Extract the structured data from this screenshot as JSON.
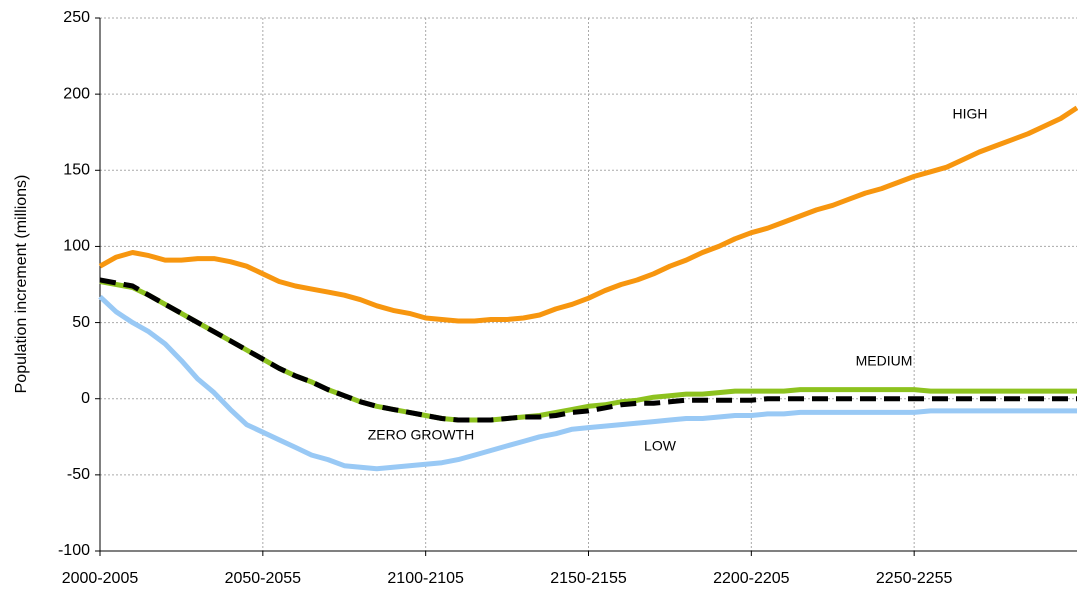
{
  "chart_data": {
    "type": "line",
    "y_label": "Population increment (millions)",
    "categories": [
      "2000-2005",
      null,
      null,
      null,
      null,
      null,
      null,
      null,
      null,
      null,
      "2050-2055",
      null,
      null,
      null,
      null,
      null,
      null,
      null,
      null,
      null,
      "2100-2105",
      null,
      null,
      null,
      null,
      null,
      null,
      null,
      null,
      null,
      "2150-2155",
      null,
      null,
      null,
      null,
      null,
      null,
      null,
      null,
      null,
      "2200-2205",
      null,
      null,
      null,
      null,
      null,
      null,
      null,
      null,
      null,
      "2250-2255",
      null,
      null,
      null,
      null,
      null,
      null,
      null,
      null,
      null,
      null
    ],
    "series": [
      {
        "name": "HIGH",
        "color": "#f7960f",
        "values": [
          87,
          93,
          96,
          94,
          91,
          91,
          92,
          92,
          90,
          87,
          82,
          77,
          74,
          72,
          70,
          68,
          65,
          61,
          58,
          56,
          53,
          52,
          51,
          51,
          52,
          52,
          53,
          55,
          59,
          62,
          66,
          71,
          75,
          78,
          82,
          87,
          91,
          96,
          100,
          105,
          109,
          112,
          116,
          120,
          124,
          127,
          131,
          135,
          138,
          142,
          146,
          149,
          152,
          157,
          162,
          166,
          170,
          174,
          179,
          184,
          191
        ]
      },
      {
        "name": "LOW",
        "color": "#99c9f5",
        "values": [
          67,
          57,
          50,
          44,
          36,
          25,
          13,
          4,
          -7,
          -17,
          -22,
          -27,
          -32,
          -37,
          -40,
          -44,
          -45,
          -46,
          -45,
          -44,
          -43,
          -42,
          -40,
          -37,
          -34,
          -31,
          -28,
          -25,
          -23,
          -20,
          -19,
          -18,
          -17,
          -16,
          -15,
          -14,
          -13,
          -13,
          -12,
          -11,
          -11,
          -10,
          -10,
          -9,
          -9,
          -9,
          -9,
          -9,
          -9,
          -9,
          -9,
          -8,
          -8,
          -8,
          -8,
          -8,
          -8,
          -8,
          -8,
          -8,
          -8
        ]
      },
      {
        "name": "MEDIUM",
        "color": "#8dc21f",
        "values": [
          77,
          75,
          73,
          68,
          62,
          56,
          50,
          44,
          38,
          32,
          26,
          20,
          15,
          11,
          6,
          2,
          -2,
          -5,
          -7,
          -9,
          -11,
          -13,
          -14,
          -14,
          -14,
          -13,
          -12,
          -11,
          -9,
          -7,
          -5,
          -4,
          -2,
          -1,
          1,
          2,
          3,
          3,
          4,
          5,
          5,
          5,
          5,
          6,
          6,
          6,
          6,
          6,
          6,
          6,
          6,
          5,
          5,
          5,
          5,
          5,
          5,
          5,
          5,
          5,
          5
        ]
      },
      {
        "name": "ZERO GROWTH",
        "color": "#000000",
        "dashed": true,
        "values": [
          78,
          76,
          74,
          68,
          62,
          56,
          50,
          44,
          38,
          32,
          26,
          20,
          15,
          11,
          6,
          2,
          -2,
          -5,
          -7,
          -9,
          -11,
          -13,
          -14,
          -14,
          -14,
          -13,
          -12,
          -12,
          -11,
          -9,
          -8,
          -6,
          -4,
          -3,
          -3,
          -2,
          -1,
          -1,
          -1,
          -1,
          -1,
          0,
          0,
          0,
          0,
          0,
          0,
          0,
          0,
          0,
          0,
          0,
          0,
          0,
          0,
          0,
          0,
          0,
          0,
          0,
          0
        ]
      }
    ],
    "ylim": [
      -100,
      250
    ],
    "yticks": [
      -100,
      -50,
      0,
      50,
      100,
      150,
      200,
      250
    ],
    "grid": true
  }
}
